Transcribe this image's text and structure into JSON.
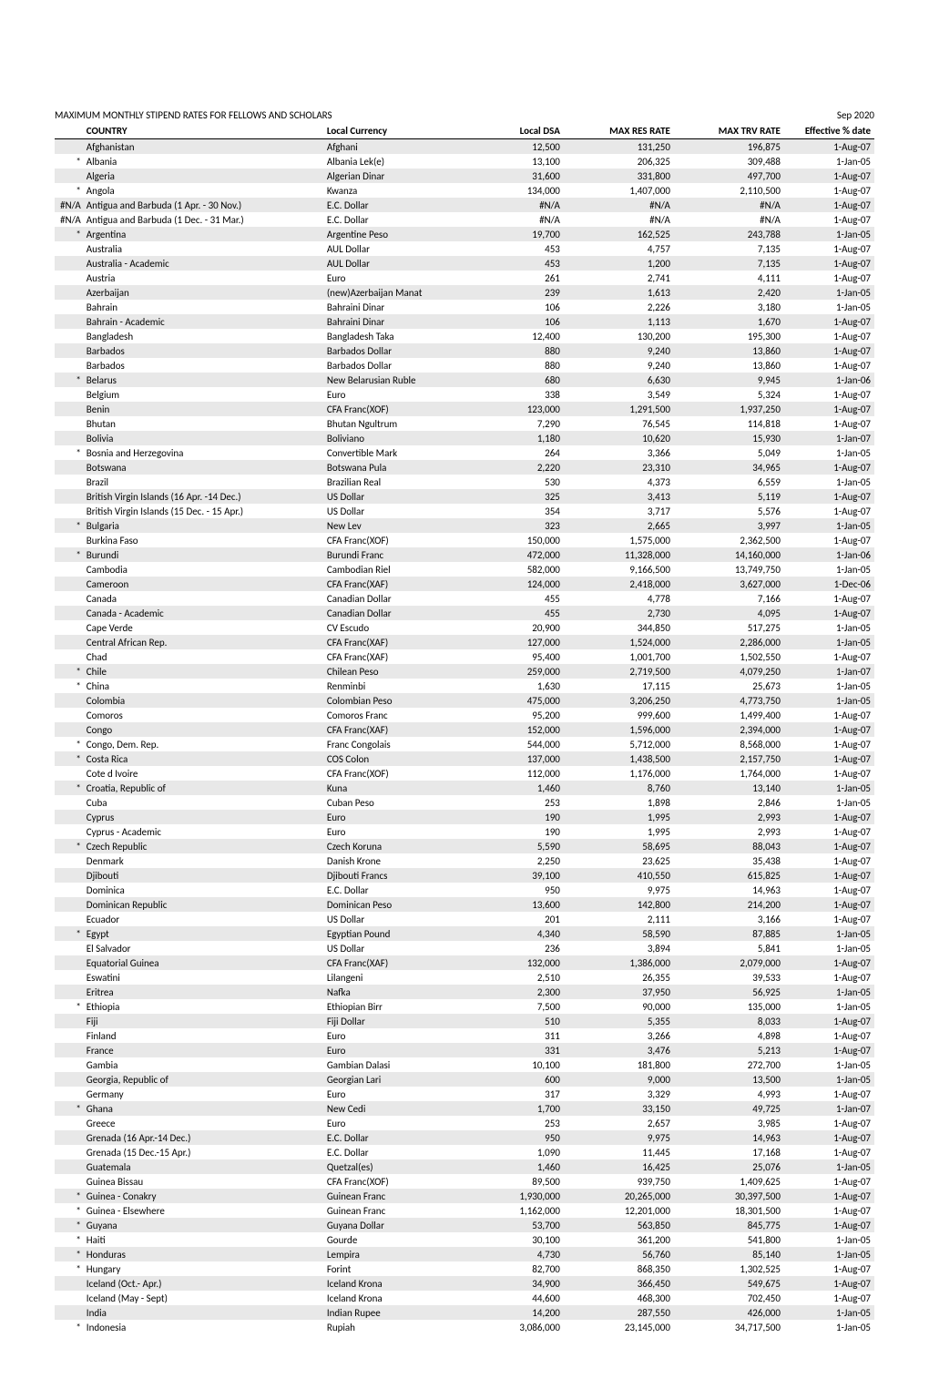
{
  "header": {
    "title": "MAXIMUM MONTHLY STIPEND RATES FOR FELLOWS AND SCHOLARS",
    "date": "Sep 2020"
  },
  "columns": {
    "country": "COUNTRY",
    "currency": "Local Currency",
    "dsa": "Local DSA",
    "res": "MAX RES RATE",
    "trv": "MAX TRV RATE",
    "eff": "Effective % date"
  },
  "rows": [
    {
      "m": "",
      "c": "Afghanistan",
      "cur": "Afghani",
      "dsa": "12,500",
      "res": "131,250",
      "trv": "196,875",
      "eff": "1-Aug-07",
      "s": 1
    },
    {
      "m": "*",
      "c": "Albania",
      "cur": "Albania Lek(e)",
      "dsa": "13,100",
      "res": "206,325",
      "trv": "309,488",
      "eff": "1-Jan-05",
      "s": 0
    },
    {
      "m": "",
      "c": "Algeria",
      "cur": "Algerian Dinar",
      "dsa": "31,600",
      "res": "331,800",
      "trv": "497,700",
      "eff": "1-Aug-07",
      "s": 1
    },
    {
      "m": "*",
      "c": "Angola",
      "cur": "Kwanza",
      "dsa": "134,000",
      "res": "1,407,000",
      "trv": "2,110,500",
      "eff": "1-Aug-07",
      "s": 0
    },
    {
      "m": "#N/A",
      "c": "Antigua and Barbuda (1 Apr. - 30 Nov.)",
      "cur": "E.C. Dollar",
      "dsa": "#N/A",
      "res": "#N/A",
      "trv": "#N/A",
      "eff": "1-Aug-07",
      "s": 1
    },
    {
      "m": "#N/A",
      "c": "Antigua and Barbuda (1 Dec. - 31 Mar.)",
      "cur": "E.C. Dollar",
      "dsa": "#N/A",
      "res": "#N/A",
      "trv": "#N/A",
      "eff": "1-Aug-07",
      "s": 0
    },
    {
      "m": "*",
      "c": "Argentina",
      "cur": "Argentine Peso",
      "dsa": "19,700",
      "res": "162,525",
      "trv": "243,788",
      "eff": "1-Jan-05",
      "s": 1
    },
    {
      "m": "",
      "c": "Australia",
      "cur": "AUL Dollar",
      "dsa": "453",
      "res": "4,757",
      "trv": "7,135",
      "eff": "1-Aug-07",
      "s": 0
    },
    {
      "m": "",
      "c": "Australia - Academic",
      "cur": "AUL Dollar",
      "dsa": "453",
      "res": "1,200",
      "trv": "7,135",
      "eff": "1-Aug-07",
      "s": 1
    },
    {
      "m": "",
      "c": "Austria",
      "cur": "Euro",
      "dsa": "261",
      "res": "2,741",
      "trv": "4,111",
      "eff": "1-Aug-07",
      "s": 0
    },
    {
      "m": "",
      "c": "Azerbaijan",
      "cur": "(new)Azerbaijan Manat",
      "dsa": "239",
      "res": "1,613",
      "trv": "2,420",
      "eff": "1-Jan-05",
      "s": 1
    },
    {
      "m": "",
      "c": "Bahrain",
      "cur": "Bahraini Dinar",
      "dsa": "106",
      "res": "2,226",
      "trv": "3,180",
      "eff": "1-Jan-05",
      "s": 0
    },
    {
      "m": "",
      "c": "Bahrain - Academic",
      "cur": "Bahraini Dinar",
      "dsa": "106",
      "res": "1,113",
      "trv": "1,670",
      "eff": "1-Aug-07",
      "s": 1
    },
    {
      "m": "",
      "c": "Bangladesh",
      "cur": "Bangladesh Taka",
      "dsa": "12,400",
      "res": "130,200",
      "trv": "195,300",
      "eff": "1-Aug-07",
      "s": 0
    },
    {
      "m": "",
      "c": "Barbados",
      "cur": "Barbados Dollar",
      "dsa": "880",
      "res": "9,240",
      "trv": "13,860",
      "eff": "1-Aug-07",
      "s": 1
    },
    {
      "m": "",
      "c": "Barbados",
      "cur": "Barbados Dollar",
      "dsa": "880",
      "res": "9,240",
      "trv": "13,860",
      "eff": "1-Aug-07",
      "s": 0
    },
    {
      "m": "*",
      "c": "Belarus",
      "cur": "New Belarusian Ruble",
      "dsa": "680",
      "res": "6,630",
      "trv": "9,945",
      "eff": "1-Jan-06",
      "s": 1
    },
    {
      "m": "",
      "c": "Belgium",
      "cur": "Euro",
      "dsa": "338",
      "res": "3,549",
      "trv": "5,324",
      "eff": "1-Aug-07",
      "s": 0
    },
    {
      "m": "",
      "c": "Benin",
      "cur": "CFA Franc(XOF)",
      "dsa": "123,000",
      "res": "1,291,500",
      "trv": "1,937,250",
      "eff": "1-Aug-07",
      "s": 1
    },
    {
      "m": "",
      "c": "Bhutan",
      "cur": "Bhutan Ngultrum",
      "dsa": "7,290",
      "res": "76,545",
      "trv": "114,818",
      "eff": "1-Aug-07",
      "s": 0
    },
    {
      "m": "",
      "c": "Bolivia",
      "cur": "Boliviano",
      "dsa": "1,180",
      "res": "10,620",
      "trv": "15,930",
      "eff": "1-Jan-07",
      "s": 1
    },
    {
      "m": "*",
      "c": "Bosnia and Herzegovina",
      "cur": "Convertible Mark",
      "dsa": "264",
      "res": "3,366",
      "trv": "5,049",
      "eff": "1-Jan-05",
      "s": 0
    },
    {
      "m": "",
      "c": "Botswana",
      "cur": "Botswana Pula",
      "dsa": "2,220",
      "res": "23,310",
      "trv": "34,965",
      "eff": "1-Aug-07",
      "s": 1
    },
    {
      "m": "",
      "c": "Brazil",
      "cur": "Brazilian Real",
      "dsa": "530",
      "res": "4,373",
      "trv": "6,559",
      "eff": "1-Jan-05",
      "s": 0
    },
    {
      "m": "",
      "c": "British Virgin Islands (16 Apr. -14 Dec.)",
      "cur": "US Dollar",
      "dsa": "325",
      "res": "3,413",
      "trv": "5,119",
      "eff": "1-Aug-07",
      "s": 1
    },
    {
      "m": "",
      "c": "British Virgin Islands (15 Dec. - 15 Apr.)",
      "cur": "US Dollar",
      "dsa": "354",
      "res": "3,717",
      "trv": "5,576",
      "eff": "1-Aug-07",
      "s": 0
    },
    {
      "m": "*",
      "c": "Bulgaria",
      "cur": "New Lev",
      "dsa": "323",
      "res": "2,665",
      "trv": "3,997",
      "eff": "1-Jan-05",
      "s": 1
    },
    {
      "m": "",
      "c": "Burkina Faso",
      "cur": "CFA Franc(XOF)",
      "dsa": "150,000",
      "res": "1,575,000",
      "trv": "2,362,500",
      "eff": "1-Aug-07",
      "s": 0
    },
    {
      "m": "*",
      "c": "Burundi",
      "cur": "Burundi Franc",
      "dsa": "472,000",
      "res": "11,328,000",
      "trv": "14,160,000",
      "eff": "1-Jan-06",
      "s": 1
    },
    {
      "m": "",
      "c": "Cambodia",
      "cur": "Cambodian Riel",
      "dsa": "582,000",
      "res": "9,166,500",
      "trv": "13,749,750",
      "eff": "1-Jan-05",
      "s": 0
    },
    {
      "m": "",
      "c": "Cameroon",
      "cur": "CFA Franc(XAF)",
      "dsa": "124,000",
      "res": "2,418,000",
      "trv": "3,627,000",
      "eff": "1-Dec-06",
      "s": 1
    },
    {
      "m": "",
      "c": "Canada",
      "cur": "Canadian Dollar",
      "dsa": "455",
      "res": "4,778",
      "trv": "7,166",
      "eff": "1-Aug-07",
      "s": 0
    },
    {
      "m": "",
      "c": "Canada - Academic",
      "cur": "Canadian Dollar",
      "dsa": "455",
      "res": "2,730",
      "trv": "4,095",
      "eff": "1-Aug-07",
      "s": 1
    },
    {
      "m": "",
      "c": "Cape Verde",
      "cur": "CV Escudo",
      "dsa": "20,900",
      "res": "344,850",
      "trv": "517,275",
      "eff": "1-Jan-05",
      "s": 0
    },
    {
      "m": "",
      "c": "Central African Rep.",
      "cur": "CFA Franc(XAF)",
      "dsa": "127,000",
      "res": "1,524,000",
      "trv": "2,286,000",
      "eff": "1-Jan-05",
      "s": 1
    },
    {
      "m": "",
      "c": "Chad",
      "cur": "CFA Franc(XAF)",
      "dsa": "95,400",
      "res": "1,001,700",
      "trv": "1,502,550",
      "eff": "1-Aug-07",
      "s": 0
    },
    {
      "m": "*",
      "c": "Chile",
      "cur": "Chilean Peso",
      "dsa": "259,000",
      "res": "2,719,500",
      "trv": "4,079,250",
      "eff": "1-Jan-07",
      "s": 1
    },
    {
      "m": "*",
      "c": "China",
      "cur": "Renminbi",
      "dsa": "1,630",
      "res": "17,115",
      "trv": "25,673",
      "eff": "1-Jan-05",
      "s": 0
    },
    {
      "m": "",
      "c": "Colombia",
      "cur": "Colombian Peso",
      "dsa": "475,000",
      "res": "3,206,250",
      "trv": "4,773,750",
      "eff": "1-Jan-05",
      "s": 1
    },
    {
      "m": "",
      "c": "Comoros",
      "cur": "Comoros Franc",
      "dsa": "95,200",
      "res": "999,600",
      "trv": "1,499,400",
      "eff": "1-Aug-07",
      "s": 0
    },
    {
      "m": "",
      "c": "Congo",
      "cur": "CFA Franc(XAF)",
      "dsa": "152,000",
      "res": "1,596,000",
      "trv": "2,394,000",
      "eff": "1-Aug-07",
      "s": 1
    },
    {
      "m": "*",
      "c": "Congo, Dem. Rep.",
      "cur": "Franc Congolais",
      "dsa": "544,000",
      "res": "5,712,000",
      "trv": "8,568,000",
      "eff": "1-Aug-07",
      "s": 0
    },
    {
      "m": "*",
      "c": "Costa Rica",
      "cur": "COS Colon",
      "dsa": "137,000",
      "res": "1,438,500",
      "trv": "2,157,750",
      "eff": "1-Aug-07",
      "s": 1
    },
    {
      "m": "",
      "c": "Cote d Ivoire",
      "cur": "CFA Franc(XOF)",
      "dsa": "112,000",
      "res": "1,176,000",
      "trv": "1,764,000",
      "eff": "1-Aug-07",
      "s": 0
    },
    {
      "m": "*",
      "c": "Croatia, Republic of",
      "cur": "Kuna",
      "dsa": "1,460",
      "res": "8,760",
      "trv": "13,140",
      "eff": "1-Jan-05",
      "s": 1
    },
    {
      "m": "",
      "c": "Cuba",
      "cur": "Cuban Peso",
      "dsa": "253",
      "res": "1,898",
      "trv": "2,846",
      "eff": "1-Jan-05",
      "s": 0
    },
    {
      "m": "",
      "c": "Cyprus",
      "cur": "Euro",
      "dsa": "190",
      "res": "1,995",
      "trv": "2,993",
      "eff": "1-Aug-07",
      "s": 1
    },
    {
      "m": "",
      "c": "Cyprus - Academic",
      "cur": "Euro",
      "dsa": "190",
      "res": "1,995",
      "trv": "2,993",
      "eff": "1-Aug-07",
      "s": 0
    },
    {
      "m": "*",
      "c": "Czech Republic",
      "cur": "Czech Koruna",
      "dsa": "5,590",
      "res": "58,695",
      "trv": "88,043",
      "eff": "1-Aug-07",
      "s": 1
    },
    {
      "m": "",
      "c": "Denmark",
      "cur": "Danish Krone",
      "dsa": "2,250",
      "res": "23,625",
      "trv": "35,438",
      "eff": "1-Aug-07",
      "s": 0
    },
    {
      "m": "",
      "c": "Djibouti",
      "cur": "Djibouti Francs",
      "dsa": "39,100",
      "res": "410,550",
      "trv": "615,825",
      "eff": "1-Aug-07",
      "s": 1
    },
    {
      "m": "",
      "c": "Dominica",
      "cur": "E.C. Dollar",
      "dsa": "950",
      "res": "9,975",
      "trv": "14,963",
      "eff": "1-Aug-07",
      "s": 0
    },
    {
      "m": "",
      "c": "Dominican Republic",
      "cur": "Dominican Peso",
      "dsa": "13,600",
      "res": "142,800",
      "trv": "214,200",
      "eff": "1-Aug-07",
      "s": 1
    },
    {
      "m": "",
      "c": "Ecuador",
      "cur": "US Dollar",
      "dsa": "201",
      "res": "2,111",
      "trv": "3,166",
      "eff": "1-Aug-07",
      "s": 0
    },
    {
      "m": "*",
      "c": "Egypt",
      "cur": "Egyptian Pound",
      "dsa": "4,340",
      "res": "58,590",
      "trv": "87,885",
      "eff": "1-Jan-05",
      "s": 1
    },
    {
      "m": "",
      "c": "El Salvador",
      "cur": "US Dollar",
      "dsa": "236",
      "res": "3,894",
      "trv": "5,841",
      "eff": "1-Jan-05",
      "s": 0
    },
    {
      "m": "",
      "c": "Equatorial Guinea",
      "cur": "CFA Franc(XAF)",
      "dsa": "132,000",
      "res": "1,386,000",
      "trv": "2,079,000",
      "eff": "1-Aug-07",
      "s": 1
    },
    {
      "m": "",
      "c": "Eswatini",
      "cur": "Lilangeni",
      "dsa": "2,510",
      "res": "26,355",
      "trv": "39,533",
      "eff": "1-Aug-07",
      "s": 0
    },
    {
      "m": "",
      "c": "Eritrea",
      "cur": "Nafka",
      "dsa": "2,300",
      "res": "37,950",
      "trv": "56,925",
      "eff": "1-Jan-05",
      "s": 1
    },
    {
      "m": "*",
      "c": "Ethiopia",
      "cur": "Ethiopian Birr",
      "dsa": "7,500",
      "res": "90,000",
      "trv": "135,000",
      "eff": "1-Jan-05",
      "s": 0
    },
    {
      "m": "",
      "c": "Fiji",
      "cur": "Fiji Dollar",
      "dsa": "510",
      "res": "5,355",
      "trv": "8,033",
      "eff": "1-Aug-07",
      "s": 1
    },
    {
      "m": "",
      "c": "Finland",
      "cur": "Euro",
      "dsa": "311",
      "res": "3,266",
      "trv": "4,898",
      "eff": "1-Aug-07",
      "s": 0
    },
    {
      "m": "",
      "c": "France",
      "cur": "Euro",
      "dsa": "331",
      "res": "3,476",
      "trv": "5,213",
      "eff": "1-Aug-07",
      "s": 1
    },
    {
      "m": "",
      "c": "Gambia",
      "cur": "Gambian Dalasi",
      "dsa": "10,100",
      "res": "181,800",
      "trv": "272,700",
      "eff": "1-Jan-05",
      "s": 0
    },
    {
      "m": "",
      "c": "Georgia, Republic of",
      "cur": "Georgian Lari",
      "dsa": "600",
      "res": "9,000",
      "trv": "13,500",
      "eff": "1-Jan-05",
      "s": 1
    },
    {
      "m": "",
      "c": "Germany",
      "cur": "Euro",
      "dsa": "317",
      "res": "3,329",
      "trv": "4,993",
      "eff": "1-Aug-07",
      "s": 0
    },
    {
      "m": "*",
      "c": "Ghana",
      "cur": "New Cedi",
      "dsa": "1,700",
      "res": "33,150",
      "trv": "49,725",
      "eff": "1-Jan-07",
      "s": 1
    },
    {
      "m": "",
      "c": "Greece",
      "cur": "Euro",
      "dsa": "253",
      "res": "2,657",
      "trv": "3,985",
      "eff": "1-Aug-07",
      "s": 0
    },
    {
      "m": "",
      "c": "Grenada (16 Apr.-14 Dec.)",
      "cur": "E.C. Dollar",
      "dsa": "950",
      "res": "9,975",
      "trv": "14,963",
      "eff": "1-Aug-07",
      "s": 1
    },
    {
      "m": "",
      "c": "Grenada (15 Dec.-15 Apr.)",
      "cur": "E.C. Dollar",
      "dsa": "1,090",
      "res": "11,445",
      "trv": "17,168",
      "eff": "1-Aug-07",
      "s": 0
    },
    {
      "m": "",
      "c": "Guatemala",
      "cur": "Quetzal(es)",
      "dsa": "1,460",
      "res": "16,425",
      "trv": "25,076",
      "eff": "1-Jan-05",
      "s": 1
    },
    {
      "m": "",
      "c": "Guinea Bissau",
      "cur": "CFA Franc(XOF)",
      "dsa": "89,500",
      "res": "939,750",
      "trv": "1,409,625",
      "eff": "1-Aug-07",
      "s": 0
    },
    {
      "m": "*",
      "c": "Guinea - Conakry",
      "cur": "Guinean Franc",
      "dsa": "1,930,000",
      "res": "20,265,000",
      "trv": "30,397,500",
      "eff": "1-Aug-07",
      "s": 1
    },
    {
      "m": "*",
      "c": "Guinea - Elsewhere",
      "cur": "Guinean Franc",
      "dsa": "1,162,000",
      "res": "12,201,000",
      "trv": "18,301,500",
      "eff": "1-Aug-07",
      "s": 0
    },
    {
      "m": "*",
      "c": "Guyana",
      "cur": "Guyana Dollar",
      "dsa": "53,700",
      "res": "563,850",
      "trv": "845,775",
      "eff": "1-Aug-07",
      "s": 1
    },
    {
      "m": "*",
      "c": "Haiti",
      "cur": "Gourde",
      "dsa": "30,100",
      "res": "361,200",
      "trv": "541,800",
      "eff": "1-Jan-05",
      "s": 0
    },
    {
      "m": "*",
      "c": "Honduras",
      "cur": "Lempira",
      "dsa": "4,730",
      "res": "56,760",
      "trv": "85,140",
      "eff": "1-Jan-05",
      "s": 1
    },
    {
      "m": "*",
      "c": "Hungary",
      "cur": "Forint",
      "dsa": "82,700",
      "res": "868,350",
      "trv": "1,302,525",
      "eff": "1-Aug-07",
      "s": 0
    },
    {
      "m": "",
      "c": "Iceland (Oct.- Apr.)",
      "cur": "Iceland Krona",
      "dsa": "34,900",
      "res": "366,450",
      "trv": "549,675",
      "eff": "1-Aug-07",
      "s": 1
    },
    {
      "m": "",
      "c": "Iceland (May - Sept)",
      "cur": "Iceland Krona",
      "dsa": "44,600",
      "res": "468,300",
      "trv": "702,450",
      "eff": "1-Aug-07",
      "s": 0
    },
    {
      "m": "",
      "c": "India",
      "cur": "Indian Rupee",
      "dsa": "14,200",
      "res": "287,550",
      "trv": "426,000",
      "eff": "1-Jan-05",
      "s": 1
    },
    {
      "m": "*",
      "c": "Indonesia",
      "cur": "Rupiah",
      "dsa": "3,086,000",
      "res": "23,145,000",
      "trv": "34,717,500",
      "eff": "1-Jan-05",
      "s": 0
    }
  ]
}
